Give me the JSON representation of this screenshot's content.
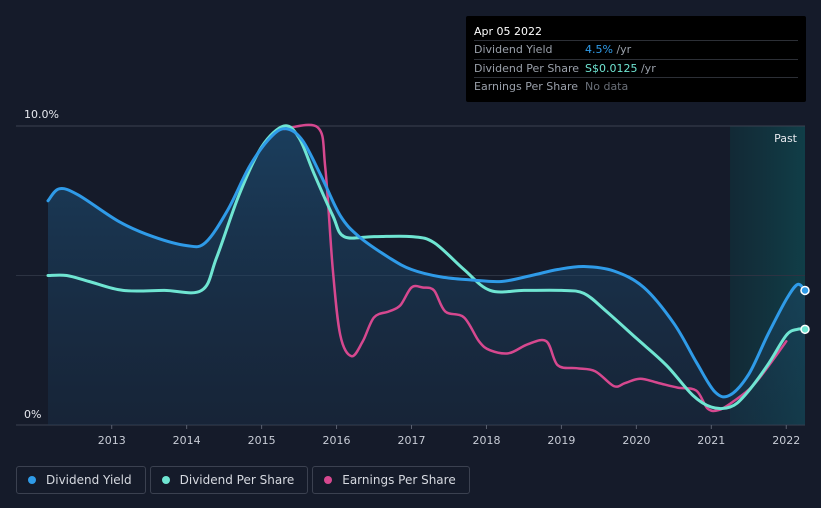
{
  "tooltip": {
    "date": "Apr 05 2022",
    "rows": [
      {
        "label": "Dividend Yield",
        "value": "4.5%",
        "unit": " /yr"
      },
      {
        "label": "Dividend Per Share",
        "value": "S$0.0125",
        "unit": " /yr"
      },
      {
        "label": "Earnings Per Share",
        "value": "No data",
        "unit": ""
      }
    ]
  },
  "legend": [
    {
      "label": "Dividend Yield",
      "color": "#2f9be8"
    },
    {
      "label": "Dividend Per Share",
      "color": "#6fe5d2"
    },
    {
      "label": "Earnings Per Share",
      "color": "#d6488f"
    }
  ],
  "chart_data": {
    "type": "line",
    "title": "",
    "xlabel": "",
    "ylabel": "",
    "x_ticks": [
      "2013",
      "2014",
      "2015",
      "2016",
      "2017",
      "2018",
      "2019",
      "2020",
      "2021",
      "2022"
    ],
    "y_tick_labels": [
      "10.0%",
      "0%"
    ],
    "xlim": [
      2012.15,
      2022.25
    ],
    "ylim": [
      0,
      10
    ],
    "past_label": "Past",
    "past_start": 2021.25,
    "series": [
      {
        "name": "Dividend Yield",
        "color": "#2f9be8",
        "points": [
          [
            2012.15,
            7.5
          ],
          [
            2012.3,
            7.9
          ],
          [
            2012.55,
            7.7
          ],
          [
            2013.1,
            6.8
          ],
          [
            2013.55,
            6.3
          ],
          [
            2014.0,
            6.0
          ],
          [
            2014.25,
            6.1
          ],
          [
            2014.55,
            7.2
          ],
          [
            2014.85,
            8.7
          ],
          [
            2015.15,
            9.7
          ],
          [
            2015.35,
            9.9
          ],
          [
            2015.55,
            9.5
          ],
          [
            2015.8,
            8.3
          ],
          [
            2016.05,
            7.0
          ],
          [
            2016.3,
            6.3
          ],
          [
            2016.7,
            5.6
          ],
          [
            2017.0,
            5.2
          ],
          [
            2017.4,
            4.95
          ],
          [
            2017.8,
            4.85
          ],
          [
            2018.2,
            4.8
          ],
          [
            2018.6,
            5.0
          ],
          [
            2018.95,
            5.2
          ],
          [
            2019.3,
            5.3
          ],
          [
            2019.7,
            5.15
          ],
          [
            2020.1,
            4.6
          ],
          [
            2020.5,
            3.4
          ],
          [
            2020.8,
            2.1
          ],
          [
            2021.05,
            1.1
          ],
          [
            2021.25,
            1.0
          ],
          [
            2021.5,
            1.7
          ],
          [
            2021.75,
            3.0
          ],
          [
            2022.0,
            4.2
          ],
          [
            2022.15,
            4.7
          ],
          [
            2022.25,
            4.5
          ]
        ]
      },
      {
        "name": "Dividend Per Share",
        "color": "#6fe5d2",
        "points": [
          [
            2012.15,
            5.0
          ],
          [
            2012.4,
            5.0
          ],
          [
            2012.7,
            4.8
          ],
          [
            2013.15,
            4.5
          ],
          [
            2013.7,
            4.5
          ],
          [
            2014.2,
            4.5
          ],
          [
            2014.4,
            5.6
          ],
          [
            2014.7,
            7.7
          ],
          [
            2015.0,
            9.3
          ],
          [
            2015.3,
            10.0
          ],
          [
            2015.5,
            9.6
          ],
          [
            2015.7,
            8.4
          ],
          [
            2015.95,
            7.0
          ],
          [
            2016.1,
            6.3
          ],
          [
            2016.5,
            6.3
          ],
          [
            2017.0,
            6.3
          ],
          [
            2017.3,
            6.1
          ],
          [
            2017.7,
            5.2
          ],
          [
            2018.05,
            4.5
          ],
          [
            2018.5,
            4.5
          ],
          [
            2019.0,
            4.5
          ],
          [
            2019.3,
            4.4
          ],
          [
            2019.6,
            3.8
          ],
          [
            2020.0,
            2.9
          ],
          [
            2020.4,
            2.0
          ],
          [
            2020.75,
            1.0
          ],
          [
            2021.0,
            0.6
          ],
          [
            2021.25,
            0.6
          ],
          [
            2021.45,
            1.0
          ],
          [
            2021.75,
            2.0
          ],
          [
            2022.0,
            3.0
          ],
          [
            2022.15,
            3.2
          ],
          [
            2022.25,
            3.2
          ]
        ]
      },
      {
        "name": "Earnings Per Share",
        "color": "#d6488f",
        "points": [
          [
            2015.3,
            9.9
          ],
          [
            2015.75,
            9.95
          ],
          [
            2015.85,
            8.6
          ],
          [
            2015.95,
            5.2
          ],
          [
            2016.05,
            3.0
          ],
          [
            2016.2,
            2.3
          ],
          [
            2016.35,
            2.8
          ],
          [
            2016.5,
            3.6
          ],
          [
            2016.7,
            3.8
          ],
          [
            2016.85,
            4.0
          ],
          [
            2017.0,
            4.6
          ],
          [
            2017.15,
            4.6
          ],
          [
            2017.3,
            4.5
          ],
          [
            2017.45,
            3.8
          ],
          [
            2017.7,
            3.6
          ],
          [
            2017.9,
            2.8
          ],
          [
            2018.05,
            2.5
          ],
          [
            2018.3,
            2.4
          ],
          [
            2018.55,
            2.7
          ],
          [
            2018.8,
            2.8
          ],
          [
            2018.95,
            2.0
          ],
          [
            2019.2,
            1.9
          ],
          [
            2019.45,
            1.8
          ],
          [
            2019.7,
            1.3
          ],
          [
            2019.85,
            1.4
          ],
          [
            2020.05,
            1.55
          ],
          [
            2020.3,
            1.4
          ],
          [
            2020.55,
            1.25
          ],
          [
            2020.8,
            1.15
          ],
          [
            2020.95,
            0.55
          ],
          [
            2021.1,
            0.5
          ],
          [
            2021.3,
            0.8
          ],
          [
            2021.55,
            1.3
          ],
          [
            2021.8,
            2.1
          ],
          [
            2022.0,
            2.8
          ]
        ]
      }
    ]
  }
}
